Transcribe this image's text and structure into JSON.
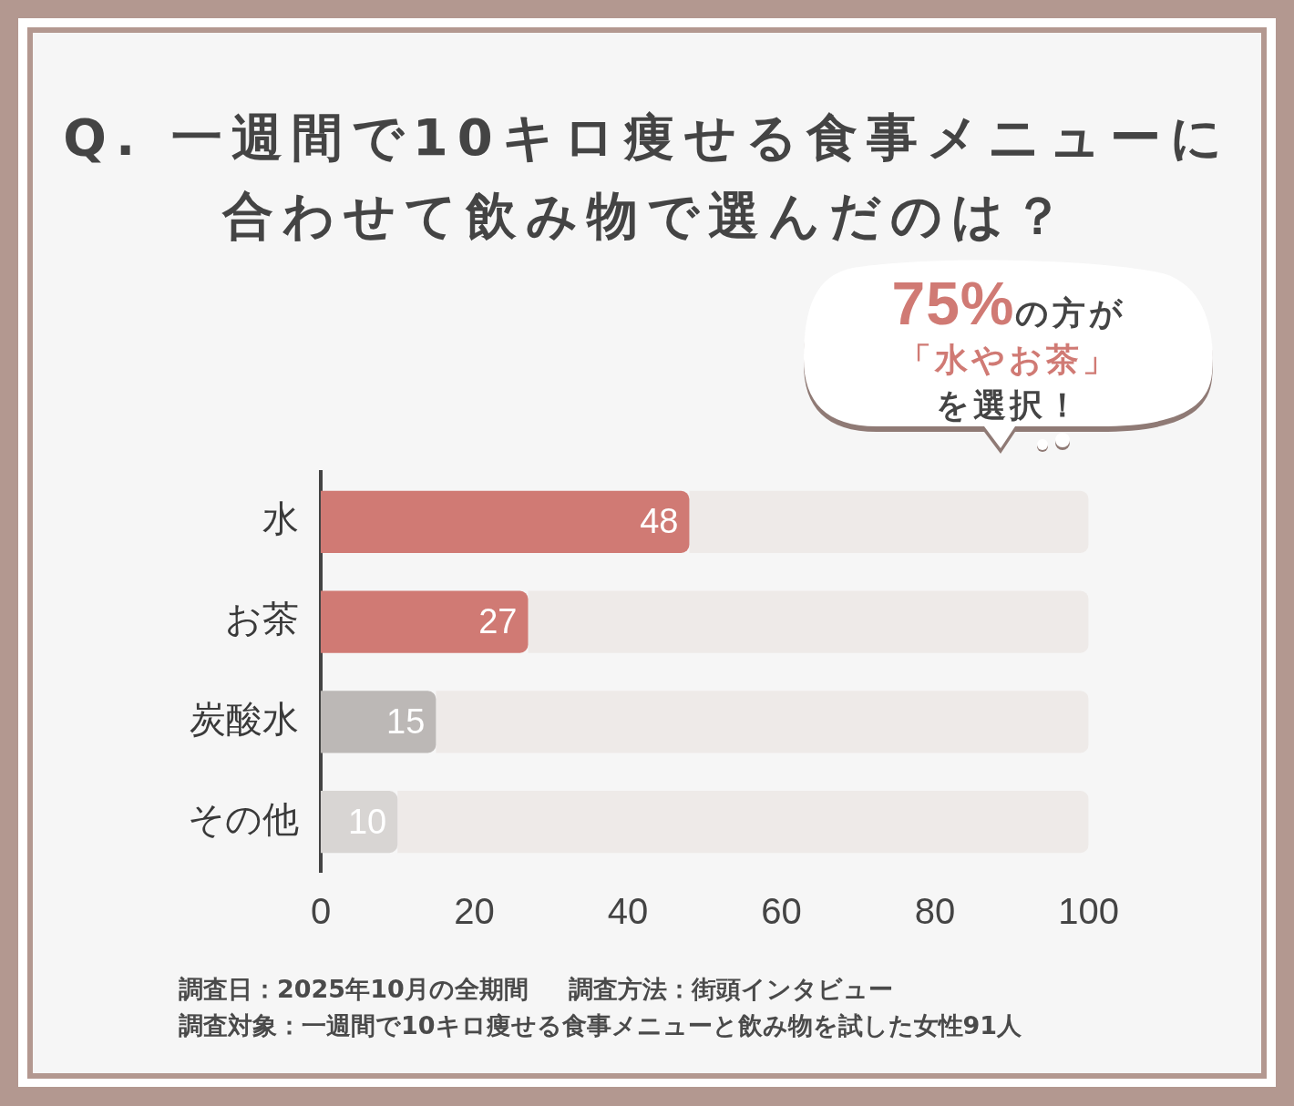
{
  "chart_data": {
    "type": "bar",
    "orientation": "horizontal",
    "stacked": true,
    "title": "Q. 一週間で10キロ痩せる食事メニューに合わせて飲み物で選んだのは？",
    "categories": [
      "水",
      "お茶",
      "炭酸水",
      "その他"
    ],
    "series": [
      {
        "colors": [
          "#d07a74",
          "#d07a74",
          "#bcb8b6",
          "#d8d5d3"
        ],
        "values": [
          48,
          27,
          15,
          10
        ],
        "value_labels": [
          "48",
          "27",
          "15",
          "10"
        ]
      },
      {
        "color": "#eeeae8",
        "values": [
          52,
          73,
          85,
          90
        ]
      }
    ],
    "xlim": [
      0,
      100
    ],
    "xticks": [
      0,
      20,
      40,
      60,
      80,
      100
    ],
    "grid": false,
    "legend": false,
    "annotations": [
      "75%の方が「水やお茶」を選択！",
      "調査日：2025年10月の全期間",
      "調査方法：街頭インタビュー",
      "調査対象：一週間で10キロ痩せる食事メニューと飲み物を試した女性91人"
    ]
  }
}
